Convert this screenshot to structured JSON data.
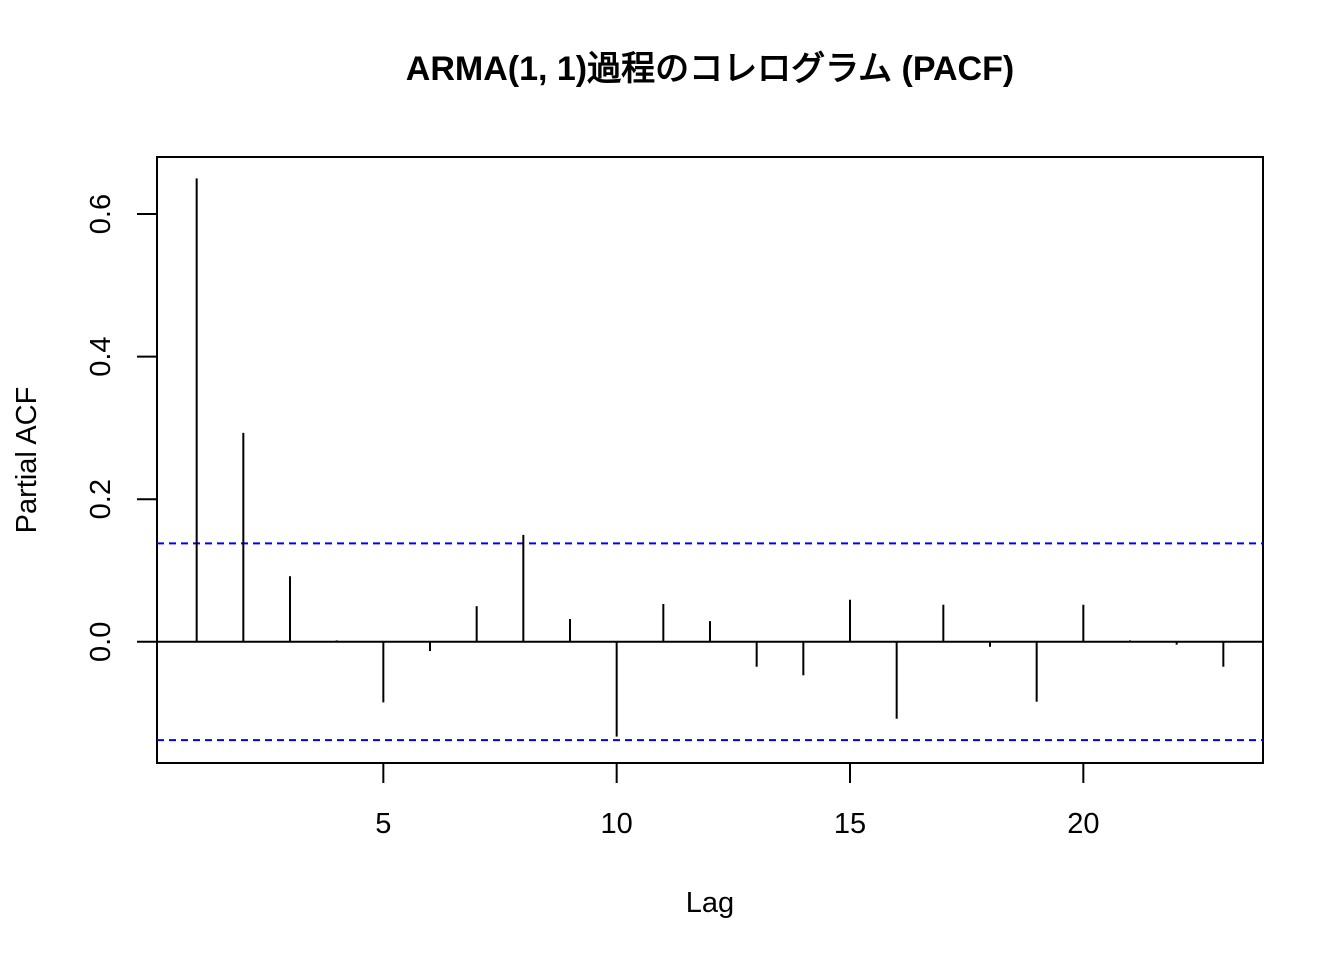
{
  "chart_data": {
    "type": "bar",
    "title": "ARMA(1, 1)過程のコレログラム (PACF)",
    "xlabel": "Lag",
    "ylabel": "Partial ACF",
    "xlim": [
      0.15,
      23.85
    ],
    "ylim": [
      -0.17,
      0.68
    ],
    "x_ticks": [
      5,
      10,
      15,
      20
    ],
    "y_ticks": [
      0.0,
      0.2,
      0.4,
      0.6
    ],
    "x_tick_labels": [
      "5",
      "10",
      "15",
      "20"
    ],
    "y_tick_labels": [
      "0.0",
      "0.2",
      "0.4",
      "0.6"
    ],
    "lags": [
      1,
      2,
      3,
      4,
      5,
      6,
      7,
      8,
      9,
      10,
      11,
      12,
      13,
      14,
      15,
      16,
      17,
      18,
      19,
      20,
      21,
      22,
      23
    ],
    "values": [
      0.65,
      0.293,
      0.092,
      0.002,
      -0.085,
      -0.013,
      0.05,
      0.15,
      0.032,
      -0.133,
      0.053,
      0.029,
      -0.035,
      -0.047,
      0.059,
      -0.108,
      0.052,
      -0.007,
      -0.084,
      0.052,
      0.002,
      -0.004,
      -0.035
    ],
    "confidence_bound": 0.138,
    "grid": false,
    "colors": {
      "bars": "#000000",
      "confidence_lines": "#0000ff",
      "axes": "#000000"
    }
  }
}
